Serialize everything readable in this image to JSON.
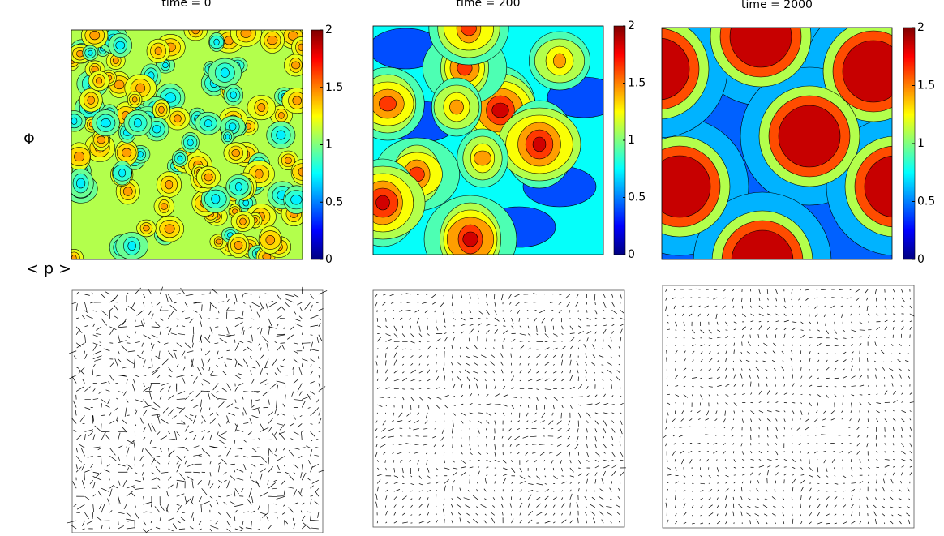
{
  "columns": [
    {
      "title": "time = 0"
    },
    {
      "title": "time = 200"
    },
    {
      "title": "time = 2000"
    }
  ],
  "rows": [
    {
      "label": "Φ"
    },
    {
      "label": "< p >"
    }
  ],
  "colorbar": {
    "lim": [
      0,
      2
    ],
    "ticks": [
      0,
      0.5,
      1,
      1.5,
      2
    ]
  }
}
